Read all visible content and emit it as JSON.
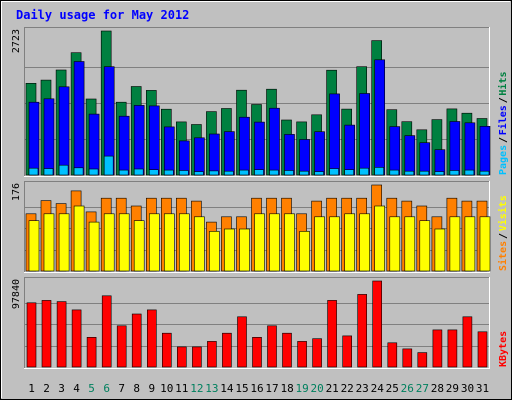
{
  "chart_data": {
    "type": "bar",
    "title": "Daily usage for May 2012",
    "categories": [
      "1",
      "2",
      "3",
      "4",
      "5",
      "6",
      "7",
      "8",
      "9",
      "10",
      "11",
      "12",
      "13",
      "14",
      "15",
      "16",
      "17",
      "18",
      "19",
      "20",
      "21",
      "22",
      "23",
      "24",
      "25",
      "26",
      "27",
      "28",
      "29",
      "30",
      "31"
    ],
    "weekend_days": [
      "5",
      "6",
      "12",
      "13",
      "19",
      "20",
      "26",
      "27"
    ],
    "panels": [
      {
        "id": "hits",
        "ymax": 2723,
        "ymax_label": "2723",
        "side_labels": [
          "Pages",
          "Files",
          "Hits"
        ],
        "series": [
          {
            "name": "Hits",
            "color": "#008040",
            "values": [
              1734,
              1795,
              1985,
              2312,
              1438,
              2723,
              1377,
              1673,
              1599,
              1244,
              1005,
              954,
              1198,
              1257,
              1604,
              1334,
              1622,
              1040,
              1005,
              1138,
              1982,
              1247,
              2048,
              2542,
              1234,
              1008,
              855,
              1048,
              1250,
              1168,
              1069
            ]
          },
          {
            "name": "Files",
            "color": "#0000ff",
            "values": [
              1377,
              1440,
              1667,
              2146,
              1151,
              2048,
              1111,
              1316,
              1307,
              910,
              645,
              703,
              775,
              820,
              1093,
              1000,
              1264,
              767,
              671,
              818,
              1534,
              943,
              1541,
              2178,
              916,
              745,
              610,
              479,
              1011,
              988,
              921
            ]
          },
          {
            "name": "Pages",
            "color": "#00c0ff",
            "values": [
              129,
              121,
              186,
              137,
              113,
              358,
              93,
              113,
              100,
              93,
              86,
              64,
              78,
              71,
              93,
              100,
              93,
              86,
              71,
              64,
              121,
              100,
              129,
              143,
              93,
              71,
              71,
              64,
              86,
              93,
              71
            ]
          }
        ]
      },
      {
        "id": "visits",
        "ymax": 176,
        "ymax_label": "176",
        "side_labels": [
          "Sites",
          "Visits"
        ],
        "series": [
          {
            "name": "Visits",
            "color": "#ff8000",
            "values": [
              117,
              144,
              138,
              164,
              121,
              149,
              149,
              133,
              149,
              149,
              149,
              143,
              100,
              111,
              111,
              149,
              149,
              149,
              117,
              143,
              149,
              149,
              149,
              176,
              149,
              143,
              133,
              111,
              149,
              143,
              143
            ]
          },
          {
            "name": "Sites",
            "color": "#ffff00",
            "values": [
              103,
              117,
              117,
              133,
              100,
              117,
              117,
              103,
              117,
              117,
              117,
              111,
              81,
              86,
              86,
              117,
              117,
              117,
              81,
              111,
              111,
              117,
              117,
              133,
              111,
              111,
              103,
              86,
              111,
              111,
              111
            ]
          }
        ]
      },
      {
        "id": "kbytes",
        "ymax": 97840,
        "ymax_label": "97840",
        "side_labels": [
          "KBytes"
        ],
        "series": [
          {
            "name": "KBytes",
            "color": "#ff0000",
            "values": [
              73008,
              75813,
              74450,
              64924,
              33779,
              80998,
              46838,
              60263,
              64924,
              38446,
              22872,
              22872,
              29101,
              38446,
              57148,
              33779,
              46838,
              38446,
              29101,
              32217,
              75813,
              35329,
              82576,
              97840,
              27540,
              20539,
              16409,
              42160,
              42160,
              57148,
              40000
            ]
          }
        ]
      }
    ]
  }
}
